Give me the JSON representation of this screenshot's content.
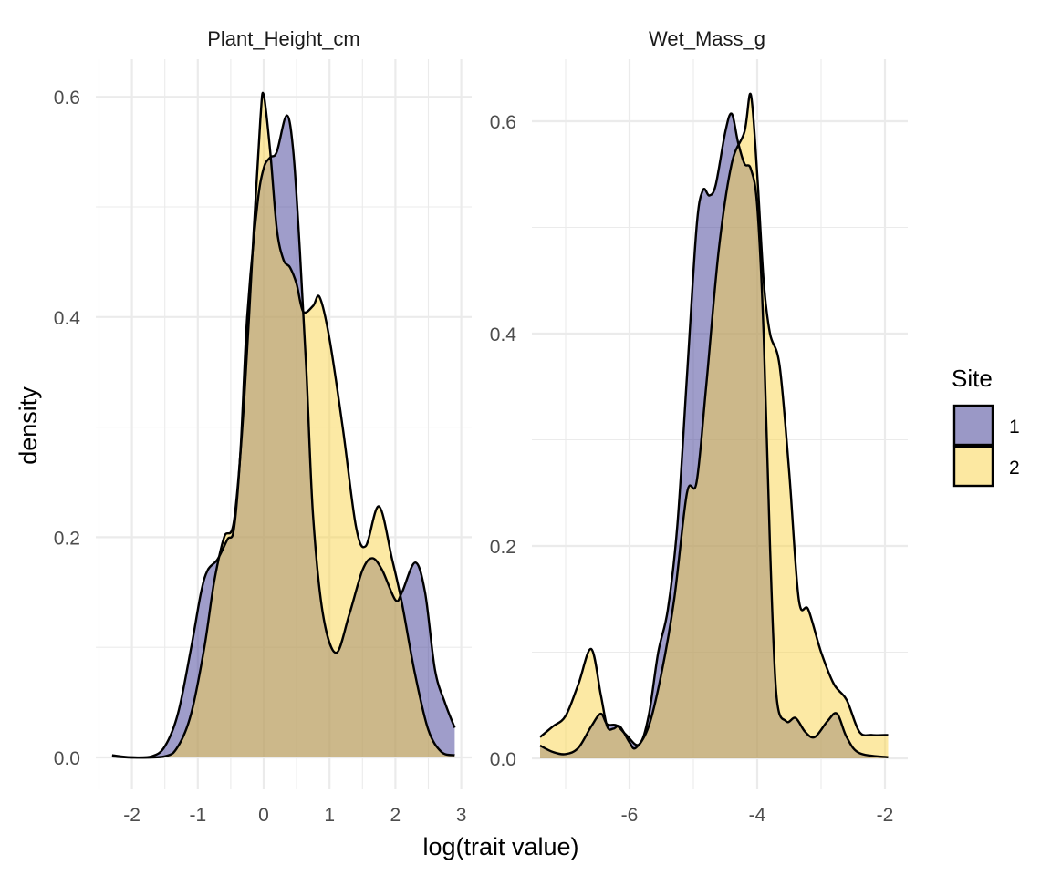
{
  "chart_data": {
    "type": "area",
    "subtype": "density",
    "xlabel": "log(trait value)",
    "ylabel": "density",
    "legend": {
      "title": "Site",
      "position": "right",
      "entries": [
        {
          "label": "1",
          "color": "#9a98c6"
        },
        {
          "label": "2",
          "color": "#fce8a1"
        }
      ]
    },
    "grid": true,
    "facets": [
      {
        "title": "Plant_Height_cm",
        "xlim": [
          -2.5,
          3.15
        ],
        "ylim": [
          -0.03,
          0.635
        ],
        "xticks": [
          -2,
          -1,
          0,
          1,
          2,
          3
        ],
        "yticks": [
          0.0,
          0.2,
          0.4,
          0.6
        ],
        "ytick_labels": [
          "0.0",
          "0.2",
          "0.4",
          "0.6"
        ],
        "series": [
          {
            "name": "1",
            "points": [
              [
                -2.3,
                0.002
              ],
              [
                -2.0,
                0.0
              ],
              [
                -1.7,
                0.001
              ],
              [
                -1.5,
                0.01
              ],
              [
                -1.3,
                0.04
              ],
              [
                -1.1,
                0.1
              ],
              [
                -0.95,
                0.15
              ],
              [
                -0.85,
                0.17
              ],
              [
                -0.7,
                0.18
              ],
              [
                -0.55,
                0.198
              ],
              [
                -0.45,
                0.208
              ],
              [
                -0.35,
                0.28
              ],
              [
                -0.25,
                0.4
              ],
              [
                -0.1,
                0.5
              ],
              [
                0.0,
                0.535
              ],
              [
                0.1,
                0.545
              ],
              [
                0.2,
                0.55
              ],
              [
                0.35,
                0.583
              ],
              [
                0.45,
                0.55
              ],
              [
                0.55,
                0.46
              ],
              [
                0.65,
                0.35
              ],
              [
                0.75,
                0.22
              ],
              [
                0.9,
                0.13
              ],
              [
                1.1,
                0.095
              ],
              [
                1.3,
                0.13
              ],
              [
                1.5,
                0.17
              ],
              [
                1.65,
                0.181
              ],
              [
                1.8,
                0.17
              ],
              [
                2.0,
                0.143
              ],
              [
                2.1,
                0.15
              ],
              [
                2.3,
                0.177
              ],
              [
                2.45,
                0.15
              ],
              [
                2.6,
                0.08
              ],
              [
                2.75,
                0.05
              ],
              [
                2.9,
                0.027
              ]
            ]
          },
          {
            "name": "2",
            "points": [
              [
                -2.3,
                0.001
              ],
              [
                -2.0,
                0.0
              ],
              [
                -1.5,
                0.001
              ],
              [
                -1.3,
                0.01
              ],
              [
                -1.1,
                0.04
              ],
              [
                -0.9,
                0.1
              ],
              [
                -0.75,
                0.16
              ],
              [
                -0.6,
                0.2
              ],
              [
                -0.45,
                0.215
              ],
              [
                -0.3,
                0.32
              ],
              [
                -0.15,
                0.48
              ],
              [
                -0.05,
                0.58
              ],
              [
                0.0,
                0.602
              ],
              [
                0.1,
                0.55
              ],
              [
                0.2,
                0.48
              ],
              [
                0.3,
                0.452
              ],
              [
                0.4,
                0.445
              ],
              [
                0.5,
                0.43
              ],
              [
                0.6,
                0.405
              ],
              [
                0.75,
                0.41
              ],
              [
                0.85,
                0.418
              ],
              [
                1.0,
                0.38
              ],
              [
                1.2,
                0.3
              ],
              [
                1.4,
                0.21
              ],
              [
                1.55,
                0.192
              ],
              [
                1.75,
                0.228
              ],
              [
                1.95,
                0.18
              ],
              [
                2.1,
                0.14
              ],
              [
                2.3,
                0.075
              ],
              [
                2.5,
                0.025
              ],
              [
                2.7,
                0.005
              ],
              [
                2.9,
                0.002
              ]
            ]
          }
        ]
      },
      {
        "title": "Wet_Mass_g",
        "xlim": [
          -7.95,
          -1.6
        ],
        "ylim": [
          -0.03,
          0.67
        ],
        "xticks": [
          -6,
          -4,
          -2
        ],
        "yticks": [
          0.0,
          0.2,
          0.4,
          0.6
        ],
        "ytick_labels": [
          "0.0",
          "0.2",
          "0.4",
          "0.6"
        ],
        "series": [
          {
            "name": "1",
            "points": [
              [
                -7.4,
                0.012
              ],
              [
                -7.2,
                0.006
              ],
              [
                -7.0,
                0.004
              ],
              [
                -6.8,
                0.01
              ],
              [
                -6.6,
                0.03
              ],
              [
                -6.45,
                0.042
              ],
              [
                -6.35,
                0.032
              ],
              [
                -6.2,
                0.031
              ],
              [
                -6.05,
                0.022
              ],
              [
                -5.85,
                0.013
              ],
              [
                -5.7,
                0.04
              ],
              [
                -5.55,
                0.1
              ],
              [
                -5.4,
                0.14
              ],
              [
                -5.25,
                0.22
              ],
              [
                -5.1,
                0.36
              ],
              [
                -4.95,
                0.5
              ],
              [
                -4.85,
                0.535
              ],
              [
                -4.75,
                0.53
              ],
              [
                -4.65,
                0.54
              ],
              [
                -4.5,
                0.59
              ],
              [
                -4.4,
                0.607
              ],
              [
                -4.3,
                0.58
              ],
              [
                -4.2,
                0.56
              ],
              [
                -4.1,
                0.555
              ],
              [
                -4.0,
                0.52
              ],
              [
                -3.9,
                0.4
              ],
              [
                -3.8,
                0.2
              ],
              [
                -3.7,
                0.06
              ],
              [
                -3.55,
                0.035
              ],
              [
                -3.4,
                0.038
              ],
              [
                -3.25,
                0.025
              ],
              [
                -3.1,
                0.02
              ],
              [
                -2.9,
                0.035
              ],
              [
                -2.75,
                0.042
              ],
              [
                -2.6,
                0.02
              ],
              [
                -2.4,
                0.005
              ],
              [
                -1.95,
                0.001
              ]
            ]
          },
          {
            "name": "2",
            "points": [
              [
                -7.4,
                0.02
              ],
              [
                -7.2,
                0.03
              ],
              [
                -7.0,
                0.04
              ],
              [
                -6.8,
                0.07
              ],
              [
                -6.6,
                0.103
              ],
              [
                -6.45,
                0.06
              ],
              [
                -6.35,
                0.03
              ],
              [
                -6.25,
                0.028
              ],
              [
                -6.15,
                0.03
              ],
              [
                -6.0,
                0.015
              ],
              [
                -5.9,
                0.01
              ],
              [
                -5.7,
                0.03
              ],
              [
                -5.5,
                0.08
              ],
              [
                -5.3,
                0.15
              ],
              [
                -5.1,
                0.25
              ],
              [
                -4.95,
                0.26
              ],
              [
                -4.8,
                0.35
              ],
              [
                -4.6,
                0.48
              ],
              [
                -4.4,
                0.56
              ],
              [
                -4.2,
                0.59
              ],
              [
                -4.1,
                0.625
              ],
              [
                -4.0,
                0.55
              ],
              [
                -3.9,
                0.45
              ],
              [
                -3.8,
                0.4
              ],
              [
                -3.65,
                0.37
              ],
              [
                -3.5,
                0.27
              ],
              [
                -3.35,
                0.15
              ],
              [
                -3.2,
                0.14
              ],
              [
                -3.0,
                0.1
              ],
              [
                -2.8,
                0.07
              ],
              [
                -2.6,
                0.055
              ],
              [
                -2.4,
                0.025
              ],
              [
                -2.2,
                0.022
              ],
              [
                -1.95,
                0.022
              ]
            ]
          }
        ]
      }
    ]
  }
}
